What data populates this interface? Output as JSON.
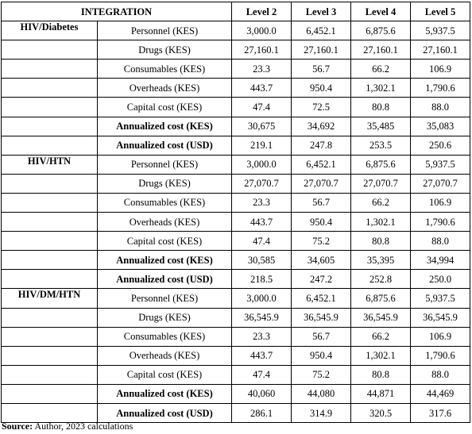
{
  "table": {
    "header": [
      "INTEGRATION",
      "Level 2",
      "Level 3",
      "Level 4",
      "Level 5"
    ],
    "groups": [
      {
        "name": "HIV/Diabetes",
        "rows": [
          {
            "label": "Personnel (KES)",
            "bold": false,
            "values": [
              "3,000.0",
              "6,452.1",
              "6,875.6",
              "5,937.5"
            ]
          },
          {
            "label": "Drugs (KES)",
            "bold": false,
            "values": [
              "27,160.1",
              "27,160.1",
              "27,160.1",
              "27,160.1"
            ]
          },
          {
            "label": "Consumables (KES)",
            "bold": false,
            "values": [
              "23.3",
              "56.7",
              "66.2",
              "106.9"
            ]
          },
          {
            "label": "Overheads (KES)",
            "bold": false,
            "values": [
              "443.7",
              "950.4",
              "1,302.1",
              "1,790.6"
            ]
          },
          {
            "label": "Capital cost (KES)",
            "bold": false,
            "values": [
              "47.4",
              "72.5",
              "80.8",
              "88.0"
            ]
          },
          {
            "label": "Annualized cost (KES)",
            "bold": true,
            "values": [
              "30,675",
              "34,692",
              "35,485",
              "35,083"
            ]
          },
          {
            "label": "Annualized cost (USD)",
            "bold": true,
            "values": [
              "219.1",
              "247.8",
              "253.5",
              "250.6"
            ]
          }
        ]
      },
      {
        "name": "HIV/HTN",
        "rows": [
          {
            "label": "Personnel (KES)",
            "bold": false,
            "values": [
              "3,000.0",
              "6,452.1",
              "6,875.6",
              "5,937.5"
            ]
          },
          {
            "label": "Drugs (KES)",
            "bold": false,
            "values": [
              "27,070.7",
              "27,070.7",
              "27,070.7",
              "27,070.7"
            ]
          },
          {
            "label": "Consumables (KES)",
            "bold": false,
            "values": [
              "23.3",
              "56.7",
              "66.2",
              "106.9"
            ]
          },
          {
            "label": "Overheads (KES)",
            "bold": false,
            "values": [
              "443.7",
              "950.4",
              "1,302.1",
              "1,790.6"
            ]
          },
          {
            "label": "Capital cost (KES)",
            "bold": false,
            "values": [
              "47.4",
              "75.2",
              "80.8",
              "88.0"
            ]
          },
          {
            "label": "Annualized cost (KES)",
            "bold": true,
            "values": [
              "30,585",
              "34,605",
              "35,395",
              "34,994"
            ]
          },
          {
            "label": "Annualized cost (USD)",
            "bold": true,
            "values": [
              "218.5",
              "247.2",
              "252.8",
              "250.0"
            ]
          }
        ]
      },
      {
        "name": "HIV/DM/HTN",
        "rows": [
          {
            "label": "Personnel (KES)",
            "bold": false,
            "values": [
              "3,000.0",
              "6,452.1",
              "6,875.6",
              "5,937.5"
            ]
          },
          {
            "label": "Drugs (KES)",
            "bold": false,
            "values": [
              "36,545.9",
              "36,545.9",
              "36,545.9",
              "36,545.9"
            ]
          },
          {
            "label": "Consumables (KES)",
            "bold": false,
            "values": [
              "23.3",
              "56.7",
              "66.2",
              "106.9"
            ]
          },
          {
            "label": "Overheads (KES)",
            "bold": false,
            "values": [
              "443.7",
              "950.4",
              "1,302.1",
              "1,790.6"
            ]
          },
          {
            "label": "Capital cost (KES)",
            "bold": false,
            "values": [
              "47.4",
              "75.2",
              "80.8",
              "88.0"
            ]
          },
          {
            "label": "Annualized cost (KES)",
            "bold": true,
            "values": [
              "40,060",
              "44,080",
              "44,871",
              "44,469"
            ]
          },
          {
            "label": "Annualized cost (USD)",
            "bold": true,
            "values": [
              "286.1",
              "314.9",
              "320.5",
              "317.6"
            ]
          }
        ]
      }
    ]
  },
  "source": {
    "label": "Source:",
    "text": " Author, 2023 calculations"
  }
}
